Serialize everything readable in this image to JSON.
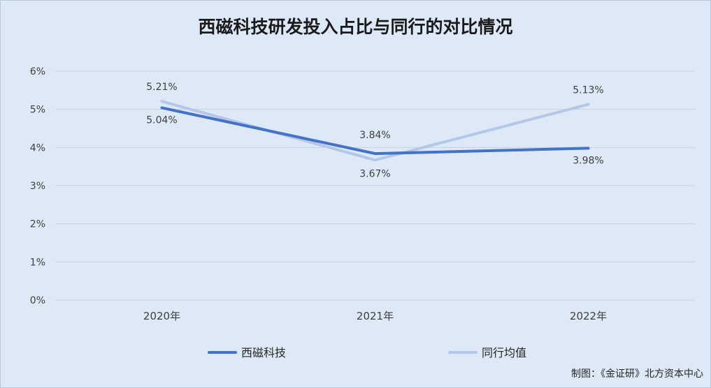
{
  "title": "西磁科技研发投入占比与同行的对比情况",
  "source": "制图：《金证研》北方资本中心",
  "colors": {
    "series_primary": "#4472c4",
    "series_secondary": "#b4c7e7",
    "grid": "#c8d2dd",
    "text": "#404040",
    "background": "#dde9f6"
  },
  "chart_data": {
    "type": "line",
    "title": "西磁科技研发投入占比与同行的对比情况",
    "categories": [
      "2020年",
      "2021年",
      "2022年"
    ],
    "ylim": [
      0,
      6
    ],
    "yticks": [
      0,
      1,
      2,
      3,
      4,
      5,
      6
    ],
    "ytick_labels": [
      "0%",
      "1%",
      "2%",
      "3%",
      "4%",
      "5%",
      "6%"
    ],
    "grid": true,
    "legend_position": "bottom",
    "xlabel": "",
    "ylabel": "",
    "series": [
      {
        "name": "西磁科技",
        "values": [
          5.04,
          3.84,
          3.98
        ],
        "labels": [
          "5.04%",
          "3.84%",
          "3.98%"
        ],
        "color": "#4472c4"
      },
      {
        "name": "同行均值",
        "values": [
          5.21,
          3.67,
          5.13
        ],
        "labels": [
          "5.21%",
          "3.67%",
          "5.13%"
        ],
        "color": "#b4c7e7"
      }
    ]
  }
}
